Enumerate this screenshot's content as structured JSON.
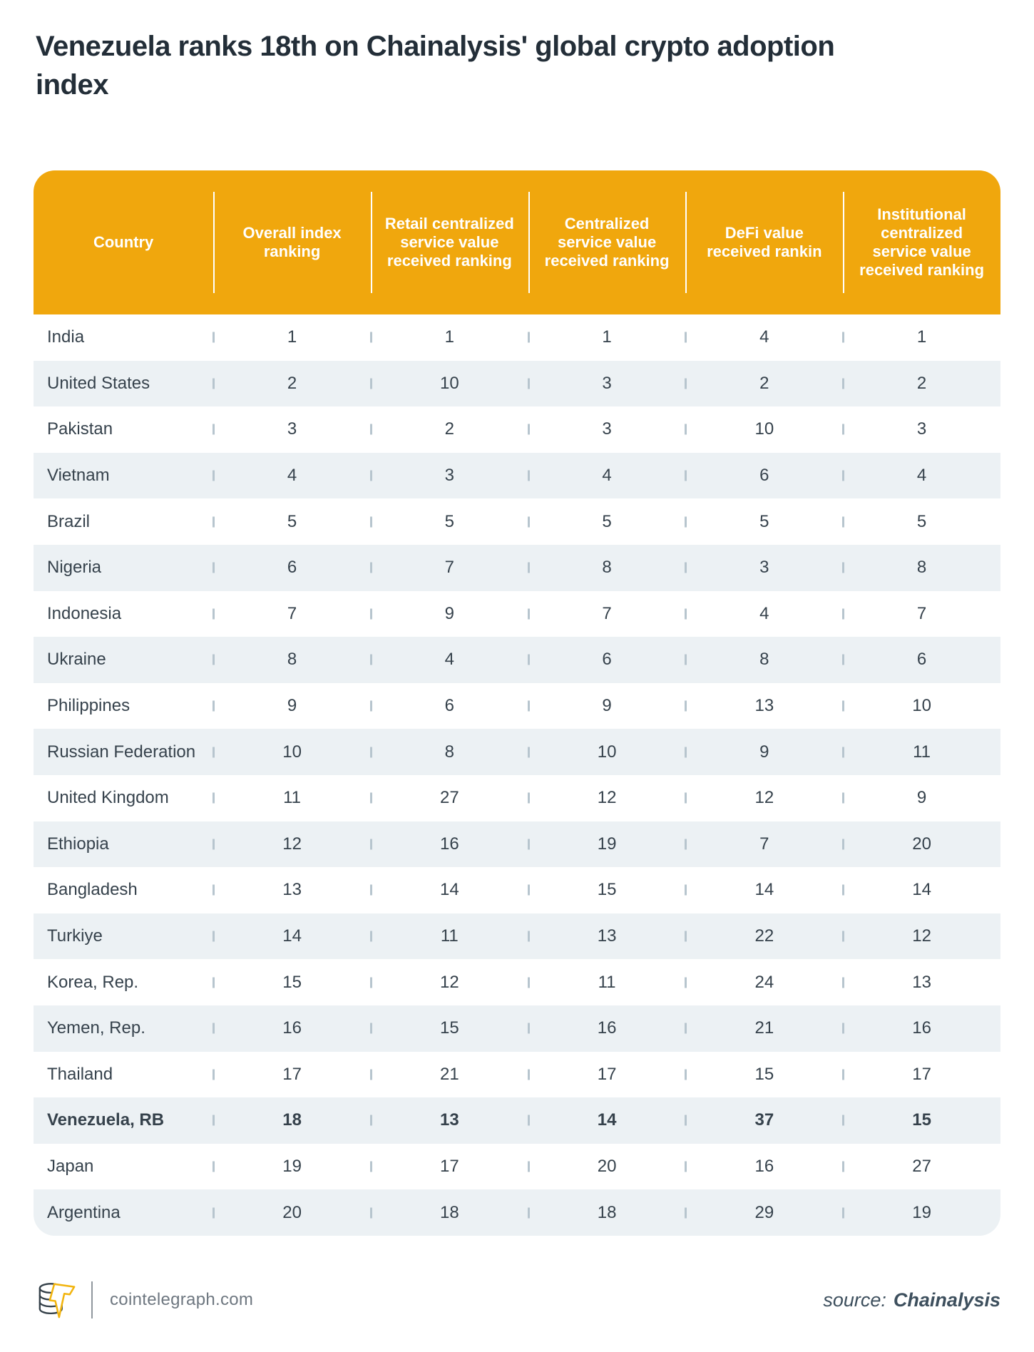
{
  "title": "Venezuela ranks 18th on Chainalysis' global crypto adoption index",
  "colors": {
    "header_bg": "#f0a70d",
    "row_alt_bg": "#ecf1f4",
    "text_dark": "#36424c",
    "title_color": "#232e38",
    "tick_color": "#b7c5ce",
    "footer_text": "#6e7780",
    "source_text": "#3d4f5d",
    "logo_bolt_yellow": "#f2b40d"
  },
  "table": {
    "columns": [
      "Country",
      "Overall index ranking",
      "Retail centralized service value received ranking",
      "Centralized service value received ranking",
      "DeFi value received rankin",
      "Institutional centralized service value received ranking"
    ],
    "rows": [
      {
        "country": "India",
        "values": [
          "1",
          "1",
          "1",
          "4",
          "1"
        ],
        "highlight": false
      },
      {
        "country": "United States",
        "values": [
          "2",
          "10",
          "3",
          "2",
          "2"
        ],
        "highlight": false
      },
      {
        "country": "Pakistan",
        "values": [
          "3",
          "2",
          "3",
          "10",
          "3"
        ],
        "highlight": false
      },
      {
        "country": "Vietnam",
        "values": [
          "4",
          "3",
          "4",
          "6",
          "4"
        ],
        "highlight": false
      },
      {
        "country": "Brazil",
        "values": [
          "5",
          "5",
          "5",
          "5",
          "5"
        ],
        "highlight": false
      },
      {
        "country": "Nigeria",
        "values": [
          "6",
          "7",
          "8",
          "3",
          "8"
        ],
        "highlight": false
      },
      {
        "country": "Indonesia",
        "values": [
          "7",
          "9",
          "7",
          "4",
          "7"
        ],
        "highlight": false
      },
      {
        "country": "Ukraine",
        "values": [
          "8",
          "4",
          "6",
          "8",
          "6"
        ],
        "highlight": false
      },
      {
        "country": "Philippines",
        "values": [
          "9",
          "6",
          "9",
          "13",
          "10"
        ],
        "highlight": false
      },
      {
        "country": "Russian Federation",
        "values": [
          "10",
          "8",
          "10",
          "9",
          "11"
        ],
        "highlight": false
      },
      {
        "country": "United Kingdom",
        "values": [
          "11",
          "27",
          "12",
          "12",
          "9"
        ],
        "highlight": false
      },
      {
        "country": "Ethiopia",
        "values": [
          "12",
          "16",
          "19",
          "7",
          "20"
        ],
        "highlight": false
      },
      {
        "country": "Bangladesh",
        "values": [
          "13",
          "14",
          "15",
          "14",
          "14"
        ],
        "highlight": false
      },
      {
        "country": "Turkiye",
        "values": [
          "14",
          "11",
          "13",
          "22",
          "12"
        ],
        "highlight": false
      },
      {
        "country": "Korea, Rep.",
        "values": [
          "15",
          "12",
          "11",
          "24",
          "13"
        ],
        "highlight": false
      },
      {
        "country": "Yemen, Rep.",
        "values": [
          "16",
          "15",
          "16",
          "21",
          "16"
        ],
        "highlight": false
      },
      {
        "country": "Thailand",
        "values": [
          "17",
          "21",
          "17",
          "15",
          "17"
        ],
        "highlight": false
      },
      {
        "country": "Venezuela, RB",
        "values": [
          "18",
          "13",
          "14",
          "37",
          "15"
        ],
        "highlight": true
      },
      {
        "country": "Japan",
        "values": [
          "19",
          "17",
          "20",
          "16",
          "27"
        ],
        "highlight": false
      },
      {
        "country": "Argentina",
        "values": [
          "20",
          "18",
          "18",
          "29",
          "19"
        ],
        "highlight": false
      }
    ]
  },
  "footer": {
    "brand": "cointelegraph.com",
    "source_label": "source:",
    "source_value": "Chainalysis"
  },
  "chart_data": {
    "type": "table",
    "title": "Venezuela ranks 18th on Chainalysis' global crypto adoption index",
    "columns": [
      "Country",
      "Overall index ranking",
      "Retail centralized service value received ranking",
      "Centralized service value received ranking",
      "DeFi value received rankin",
      "Institutional centralized service value received ranking"
    ],
    "rows": [
      [
        "India",
        1,
        1,
        1,
        4,
        1
      ],
      [
        "United States",
        2,
        10,
        3,
        2,
        2
      ],
      [
        "Pakistan",
        3,
        2,
        3,
        10,
        3
      ],
      [
        "Vietnam",
        4,
        3,
        4,
        6,
        4
      ],
      [
        "Brazil",
        5,
        5,
        5,
        5,
        5
      ],
      [
        "Nigeria",
        6,
        7,
        8,
        3,
        8
      ],
      [
        "Indonesia",
        7,
        9,
        7,
        4,
        7
      ],
      [
        "Ukraine",
        8,
        4,
        6,
        8,
        6
      ],
      [
        "Philippines",
        9,
        6,
        9,
        13,
        10
      ],
      [
        "Russian Federation",
        10,
        8,
        10,
        9,
        11
      ],
      [
        "United Kingdom",
        11,
        27,
        12,
        12,
        9
      ],
      [
        "Ethiopia",
        12,
        16,
        19,
        7,
        20
      ],
      [
        "Bangladesh",
        13,
        14,
        15,
        14,
        14
      ],
      [
        "Turkiye",
        14,
        11,
        13,
        22,
        12
      ],
      [
        "Korea, Rep.",
        15,
        12,
        11,
        24,
        13
      ],
      [
        "Yemen, Rep.",
        16,
        15,
        16,
        21,
        16
      ],
      [
        "Thailand",
        17,
        21,
        17,
        15,
        17
      ],
      [
        "Venezuela, RB",
        18,
        13,
        14,
        37,
        15
      ],
      [
        "Japan",
        19,
        17,
        20,
        16,
        27
      ],
      [
        "Argentina",
        20,
        18,
        18,
        29,
        19
      ]
    ],
    "highlighted_row": "Venezuela, RB",
    "source": "Chainalysis",
    "legend_position": "none",
    "grid": "alternating-row-shading"
  }
}
